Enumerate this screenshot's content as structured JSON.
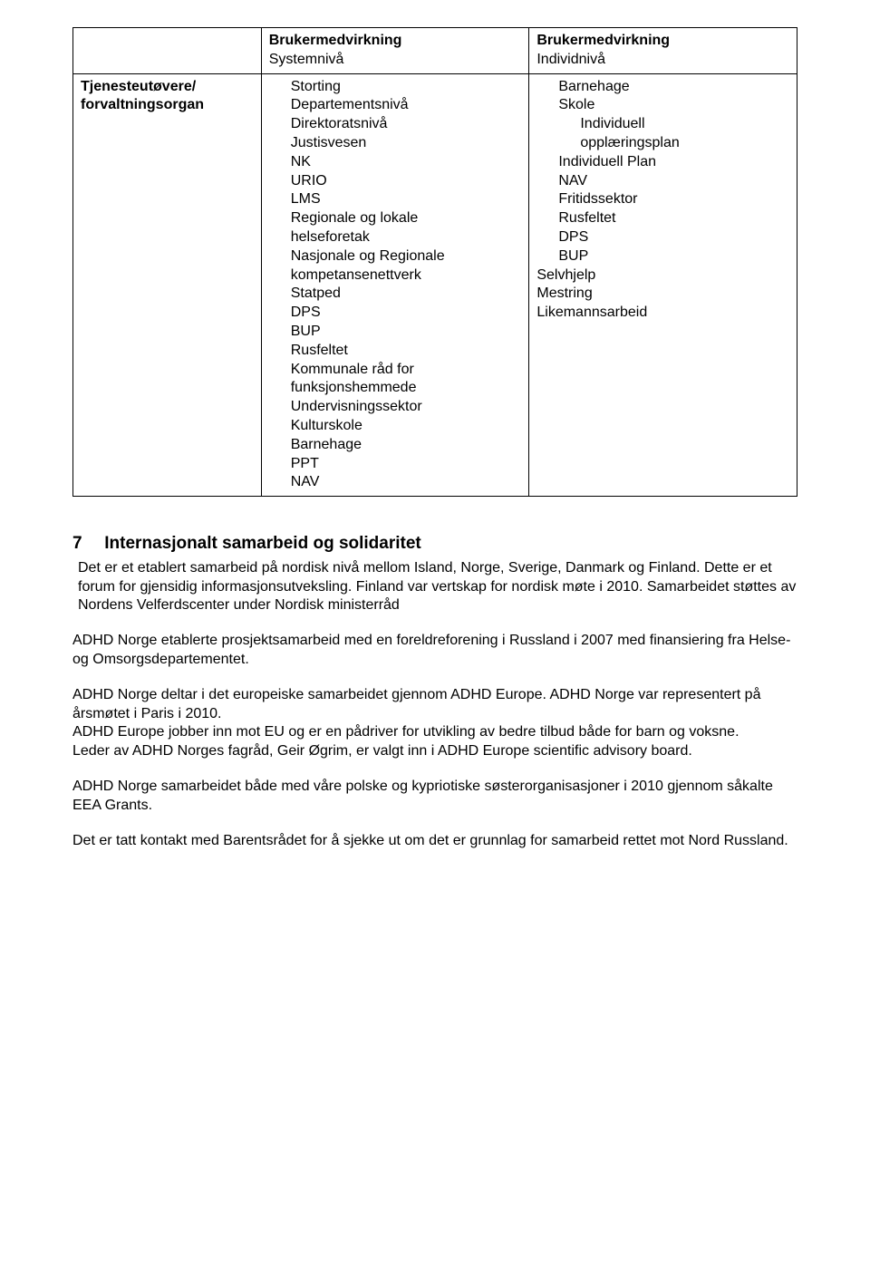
{
  "table": {
    "col1_header_line1": "Brukermedvirkning",
    "col1_header_line2": "Systemnivå",
    "col2_header_line1": "Brukermedvirkning",
    "col2_header_line2": "Individnivå",
    "row_label_line1": "Tjenesteutøvere/",
    "row_label_line2": "forvaltningsorgan",
    "left_items": [
      "Storting",
      "Departementsnivå",
      "Direktoratsnivå",
      "Justisvesen",
      "NK",
      "URIO",
      "LMS",
      "Regionale og lokale",
      "helseforetak",
      "Nasjonale og Regionale",
      "kompetansenettverk",
      "Statped",
      "DPS",
      "BUP",
      "Rusfeltet",
      "Kommunale råd for",
      "funksjonshemmede",
      "Undervisningssektor",
      "Kulturskole",
      "Barnehage",
      "PPT",
      "NAV"
    ],
    "right_items": [
      {
        "text": "Barnehage",
        "indent": 1
      },
      {
        "text": "Skole",
        "indent": 1
      },
      {
        "text": "Individuell",
        "indent": 2
      },
      {
        "text": "opplæringsplan",
        "indent": 2
      },
      {
        "text": "Individuell Plan",
        "indent": 1
      },
      {
        "text": "NAV",
        "indent": 1
      },
      {
        "text": "Fritidssektor",
        "indent": 1
      },
      {
        "text": "Rusfeltet",
        "indent": 1
      },
      {
        "text": "DPS",
        "indent": 1
      },
      {
        "text": "BUP",
        "indent": 1
      },
      {
        "text": "Selvhjelp",
        "indent": 0
      },
      {
        "text": "Mestring",
        "indent": 0
      },
      {
        "text": "Likemannsarbeid",
        "indent": 0
      }
    ]
  },
  "section": {
    "number": "7",
    "title": "Internasjonalt samarbeid og solidaritet"
  },
  "paragraphs": {
    "p1": "Det er et etablert samarbeid på nordisk nivå mellom Island, Norge, Sverige, Danmark og Finland. Dette er et forum for gjensidig informasjonsutveksling. Finland var vertskap for nordisk møte i 2010. Samarbeidet støttes av Nordens Velferdscenter under Nordisk ministerråd",
    "p2": "ADHD Norge etablerte prosjektsamarbeid med en foreldreforening i Russland i 2007 med finansiering fra Helse- og Omsorgsdepartementet.",
    "p3": "ADHD Norge deltar i det europeiske samarbeidet gjennom ADHD Europe. ADHD Norge var representert på årsmøtet i Paris i 2010.",
    "p4": "ADHD Europe jobber inn mot EU og er en pådriver for utvikling av bedre tilbud både for barn og voksne.",
    "p5": "Leder av ADHD Norges fagråd, Geir Øgrim, er valgt inn i ADHD Europe scientific advisory board.",
    "p6": "ADHD Norge samarbeidet både med våre polske og kypriotiske søsterorganisasjoner i 2010 gjennom såkalte EEA Grants.",
    "p7": "Det er tatt kontakt med Barentsrådet for å sjekke ut om det er grunnlag for samarbeid rettet mot Nord Russland."
  }
}
